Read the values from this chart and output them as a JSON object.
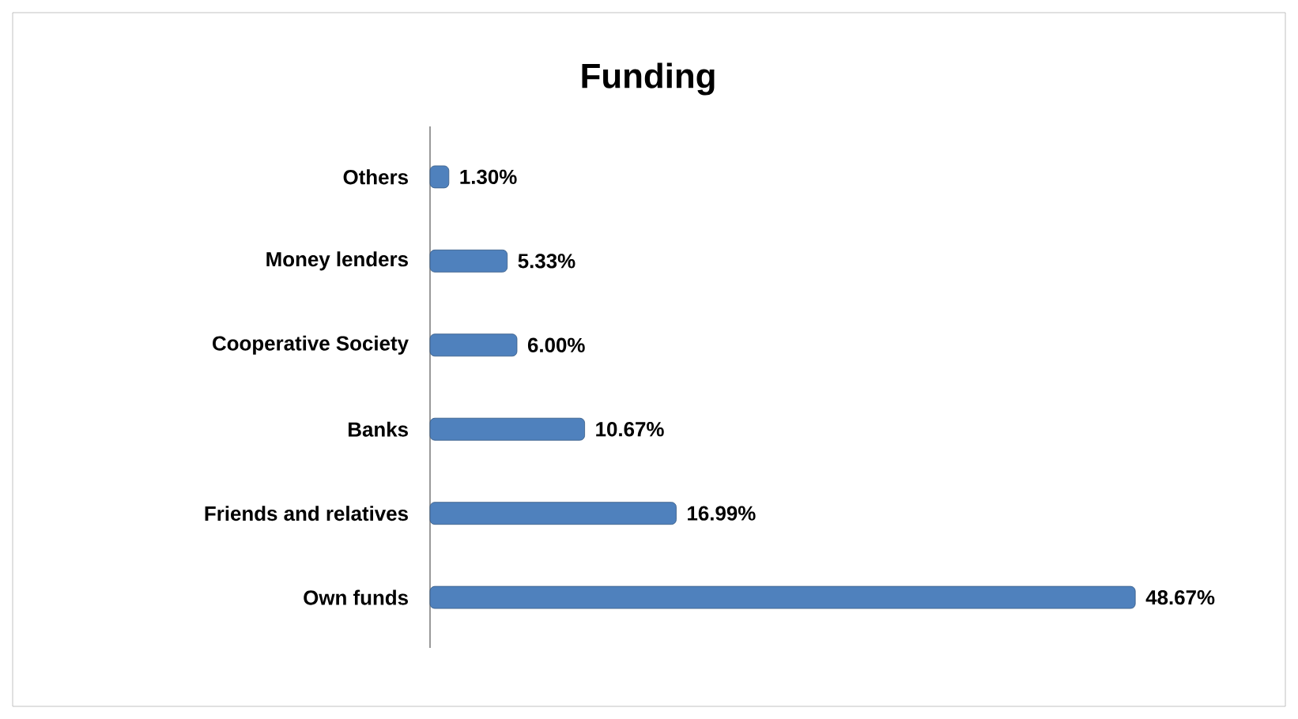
{
  "chart_data": {
    "type": "bar",
    "orientation": "horizontal",
    "title": "Funding",
    "categories": [
      "Others",
      "Money lenders",
      "Cooperative Society",
      "Banks",
      "Friends and relatives",
      "Own funds"
    ],
    "values": [
      1.3,
      5.33,
      6.0,
      10.67,
      16.99,
      48.67
    ],
    "value_labels": [
      "1.30%",
      "5.33%",
      "6.00%",
      "10.67%",
      "16.99%",
      "48.67%"
    ],
    "color": "#4f81bd"
  }
}
